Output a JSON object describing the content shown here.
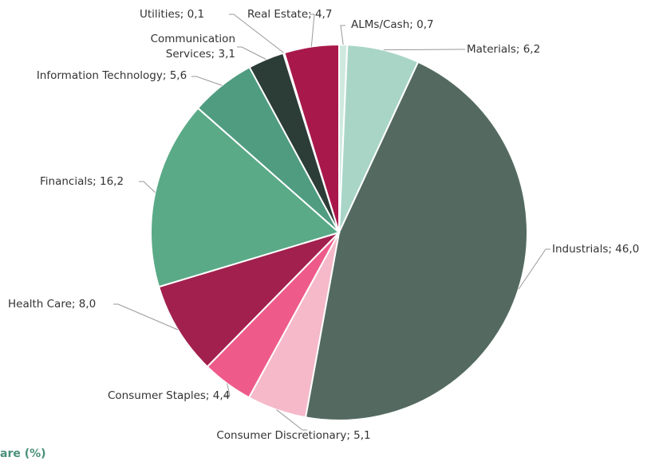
{
  "chart_data": {
    "type": "pie",
    "footer": "are (%)",
    "value_labels": [
      "ALMs/Cash; 0,7",
      "Materials; 6,2",
      "Industrials; 46,0",
      "Consumer Discretionary; 5,1",
      "Consumer Staples; 4,4",
      "Health Care; 8,0",
      "Financials; 16,2",
      "Information Technology; 5,6",
      "Communication Services; 3,1",
      "Utilities; 0,1",
      "Real Estate; 4,7"
    ],
    "values": [
      0.7,
      6.2,
      46.0,
      5.1,
      4.4,
      8.0,
      16.2,
      5.6,
      3.1,
      0.1,
      4.7
    ],
    "colors": [
      "#cfe9df",
      "#a9d5c7",
      "#546a61",
      "#f5b9c9",
      "#ee5b8b",
      "#a2204e",
      "#5aaa87",
      "#4f9c81",
      "#2c3c37",
      "#f4f4f4",
      "#a9184b"
    ]
  }
}
